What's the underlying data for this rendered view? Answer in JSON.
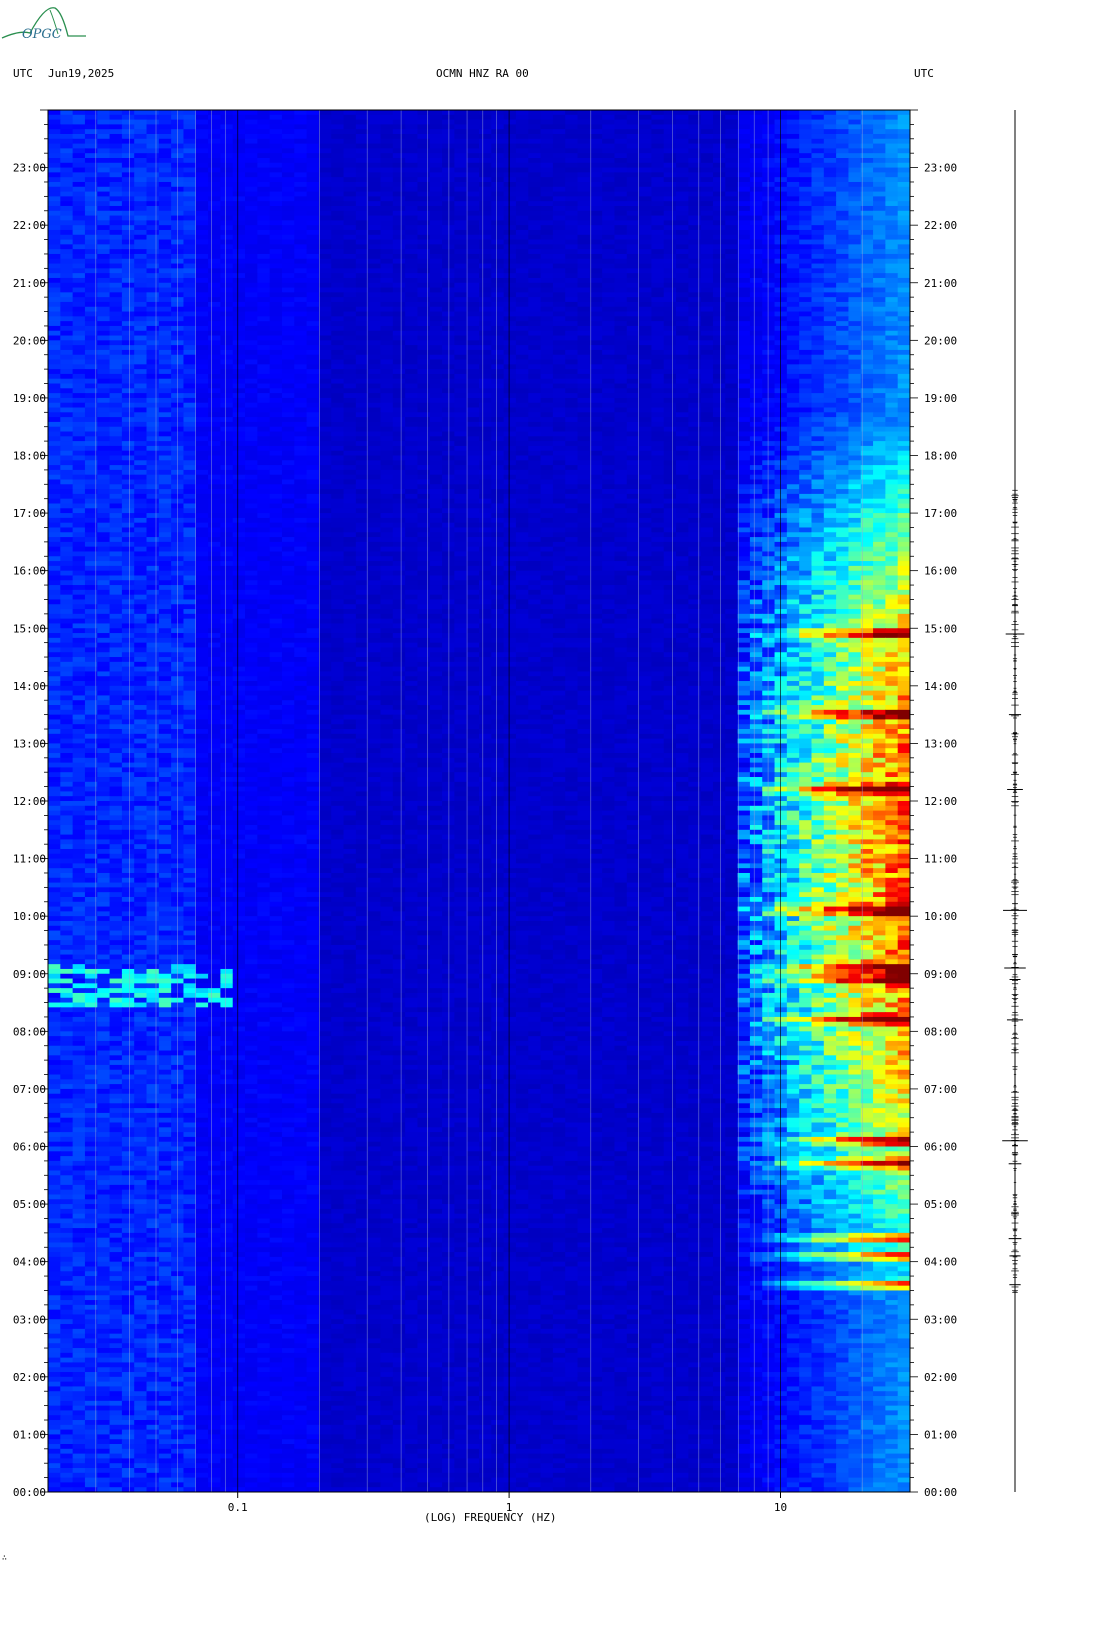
{
  "header": {
    "left_utc": "UTC",
    "date": "Jun19,2025",
    "station": "OCMN HNZ RA 00",
    "right_utc": "UTC"
  },
  "logo": {
    "text": "OPGC",
    "color": "#2a6f8f"
  },
  "footer_mark": "∴",
  "chart_data": {
    "type": "heatmap",
    "title": "OCMN HNZ RA 00",
    "xlabel": "(LOG) FREQUENCY (HZ)",
    "x_scale": "log",
    "xlim": [
      0.02,
      30
    ],
    "x_ticks": [
      {
        "value": 0.1,
        "label": "0.1"
      },
      {
        "value": 1,
        "label": "1"
      },
      {
        "value": 10,
        "label": "10"
      }
    ],
    "y_ticks": [
      "00:00",
      "01:00",
      "02:00",
      "03:00",
      "04:00",
      "05:00",
      "06:00",
      "07:00",
      "08:00",
      "09:00",
      "10:00",
      "11:00",
      "12:00",
      "13:00",
      "14:00",
      "15:00",
      "16:00",
      "17:00",
      "18:00",
      "19:00",
      "20:00",
      "21:00",
      "22:00",
      "23:00"
    ],
    "ylim_hours": [
      0,
      24
    ],
    "colormap": [
      "#00007f",
      "#0000ff",
      "#00ffff",
      "#ffff00",
      "#ff0000",
      "#7f0000"
    ],
    "background_color": "#0a14a8",
    "events_hours": [
      3.6,
      4.1,
      4.4,
      5.7,
      6.1,
      8.2,
      8.9,
      9.1,
      10.1,
      12.2,
      13.5,
      14.9
    ]
  }
}
